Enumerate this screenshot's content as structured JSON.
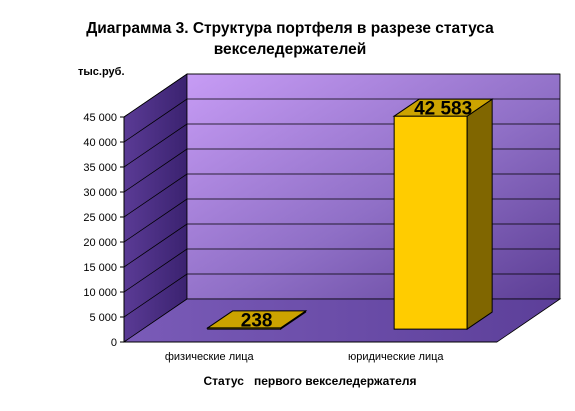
{
  "chart_data": {
    "type": "bar",
    "title": "Диаграмма 3. Структура портфеля в разрезе статуса векселедержателей",
    "unit_label": "тыс.руб.",
    "xlabel": "Статус   первого векселедержателя",
    "ylabel": "",
    "categories": [
      "физические лица",
      "юридические лица"
    ],
    "values": [
      238,
      42583
    ],
    "data_labels": [
      "238",
      "42 583"
    ],
    "ylim": [
      0,
      45000
    ],
    "yticks": [
      0,
      5000,
      10000,
      15000,
      20000,
      25000,
      30000,
      35000,
      40000,
      45000
    ],
    "ytick_labels": [
      "0",
      "5 000",
      "10 000",
      "15 000",
      "20 000",
      "25 000",
      "30 000",
      "35 000",
      "40 000",
      "45 000"
    ],
    "grid": true,
    "legend": "none",
    "style": "3d-column",
    "colors": {
      "bar_front": "#FFCC00",
      "bar_side": "#806600",
      "bar_top": "#CCA300",
      "back_wall": "#8F6FC6",
      "side_wall": "#4A2E86",
      "floor": "#6B4FA8"
    }
  }
}
